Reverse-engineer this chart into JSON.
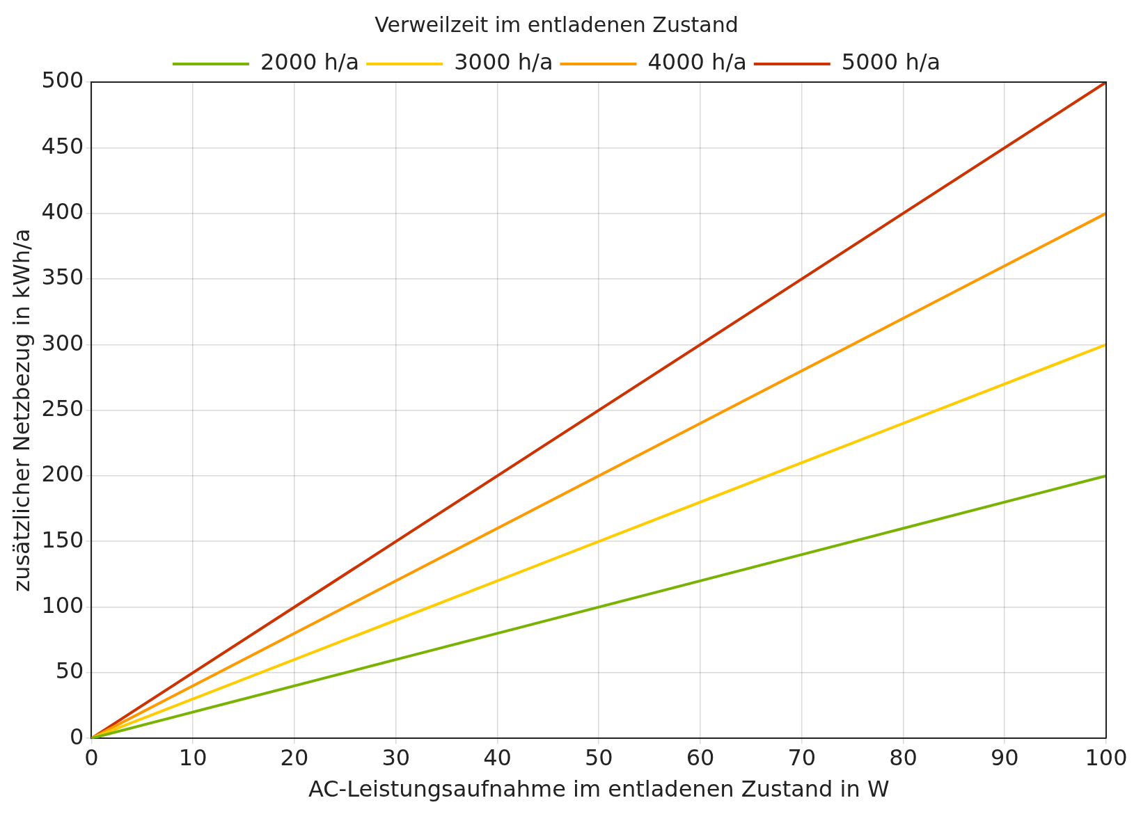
{
  "chart_data": {
    "type": "line",
    "title": "Verweilzeit im entladenen Zustand",
    "xlabel": "AC-Leistungsaufnahme im entladenen Zustand in W",
    "ylabel": "zusätzlicher Netzbezug in kWh/a",
    "x": [
      0,
      100
    ],
    "series": [
      {
        "name": "2000 h/a",
        "color": "#77b300",
        "values": [
          0,
          200
        ]
      },
      {
        "name": "3000 h/a",
        "color": "#ffcc00",
        "values": [
          0,
          300
        ]
      },
      {
        "name": "4000 h/a",
        "color": "#ff9900",
        "values": [
          0,
          400
        ]
      },
      {
        "name": "5000 h/a",
        "color": "#cc3300",
        "values": [
          0,
          500
        ]
      }
    ],
    "xlim": [
      0,
      100
    ],
    "xticks": [
      0,
      10,
      20,
      30,
      40,
      50,
      60,
      70,
      80,
      90,
      100
    ],
    "ylim": [
      0,
      500
    ],
    "yticks": [
      0,
      50,
      100,
      150,
      200,
      250,
      300,
      350,
      400,
      450,
      500
    ],
    "grid": true,
    "legend": "top",
    "marker": "none",
    "line_style": "solid"
  }
}
